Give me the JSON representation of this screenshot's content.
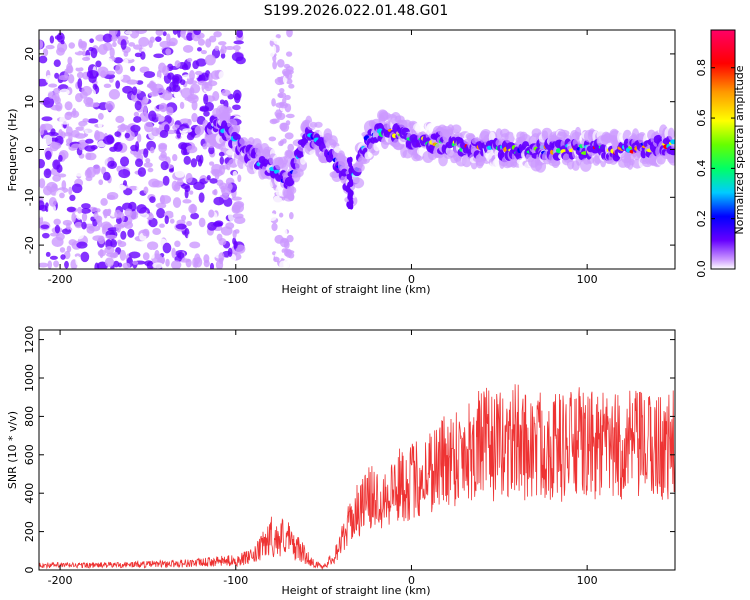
{
  "chart_data": [
    {
      "type": "heatmap",
      "title": "S199.2026.022.01.48.G01",
      "xlabel": "Height of straight line (km)",
      "ylabel": "Frequency (Hz)",
      "xlim": [
        -212,
        150
      ],
      "ylim": [
        -25,
        25
      ],
      "xticks": [
        -200,
        -100,
        0,
        100
      ],
      "yticks": [
        -20,
        -10,
        0,
        10,
        20
      ],
      "grid": false,
      "colorbar": {
        "label": "Normalized spectral amplitude",
        "range": [
          0,
          0.95
        ],
        "ticks": [
          0.0,
          0.2,
          0.4,
          0.6,
          0.8
        ],
        "tick_labels": [
          "0.0",
          "0.2",
          "0.4",
          "0.6",
          "0.8"
        ],
        "colors": [
          "#ffffff",
          "#cc99ff",
          "#6600ff",
          "#0000ff",
          "#00ccff",
          "#00ff66",
          "#66ff00",
          "#ffff00",
          "#ff9900",
          "#ff0000",
          "#ff0066"
        ]
      },
      "ridge": {
        "x": [
          -110,
          -95,
          -80,
          -70,
          -60,
          -50,
          -42,
          -35,
          -25,
          -15,
          0,
          20,
          50,
          80,
          100,
          120,
          150
        ],
        "frequency_hz": [
          5,
          0,
          -4,
          -7,
          3,
          1,
          -3,
          -8,
          2,
          4,
          2,
          1,
          0,
          0,
          0,
          0,
          1
        ]
      }
    },
    {
      "type": "line",
      "xlabel": "Height of straight line (km)",
      "ylabel": "SNR (10 * v/v)",
      "xlim": [
        -212,
        150
      ],
      "ylim": [
        0,
        1250
      ],
      "xticks": [
        -200,
        -100,
        0,
        100
      ],
      "yticks": [
        0,
        200,
        400,
        600,
        800,
        1000,
        1200
      ],
      "grid": false,
      "series": [
        {
          "name": "SNR",
          "color": "#ee3333",
          "x": [
            -212,
            -200,
            -180,
            -160,
            -140,
            -120,
            -110,
            -100,
            -90,
            -85,
            -80,
            -76,
            -72,
            -68,
            -64,
            -60,
            -55,
            -50,
            -45,
            -40,
            -35,
            -30,
            -25,
            -20,
            -15,
            -10,
            -5,
            0,
            5,
            10,
            15,
            20,
            25,
            30,
            35,
            40,
            45,
            50,
            55,
            60,
            65,
            70,
            75,
            80,
            85,
            90,
            95,
            100,
            105,
            110,
            115,
            120,
            125,
            130,
            135,
            140,
            145,
            150
          ],
          "values": [
            25,
            25,
            25,
            28,
            32,
            38,
            45,
            50,
            70,
            120,
            180,
            150,
            190,
            130,
            110,
            70,
            30,
            20,
            60,
            150,
            250,
            320,
            370,
            380,
            390,
            420,
            450,
            460,
            480,
            520,
            550,
            580,
            600,
            620,
            640,
            660,
            650,
            640,
            660,
            680,
            650,
            640,
            660,
            650,
            640,
            650,
            660,
            640,
            650,
            640,
            630,
            640,
            650,
            640,
            640,
            650,
            640,
            660
          ]
        }
      ]
    }
  ]
}
